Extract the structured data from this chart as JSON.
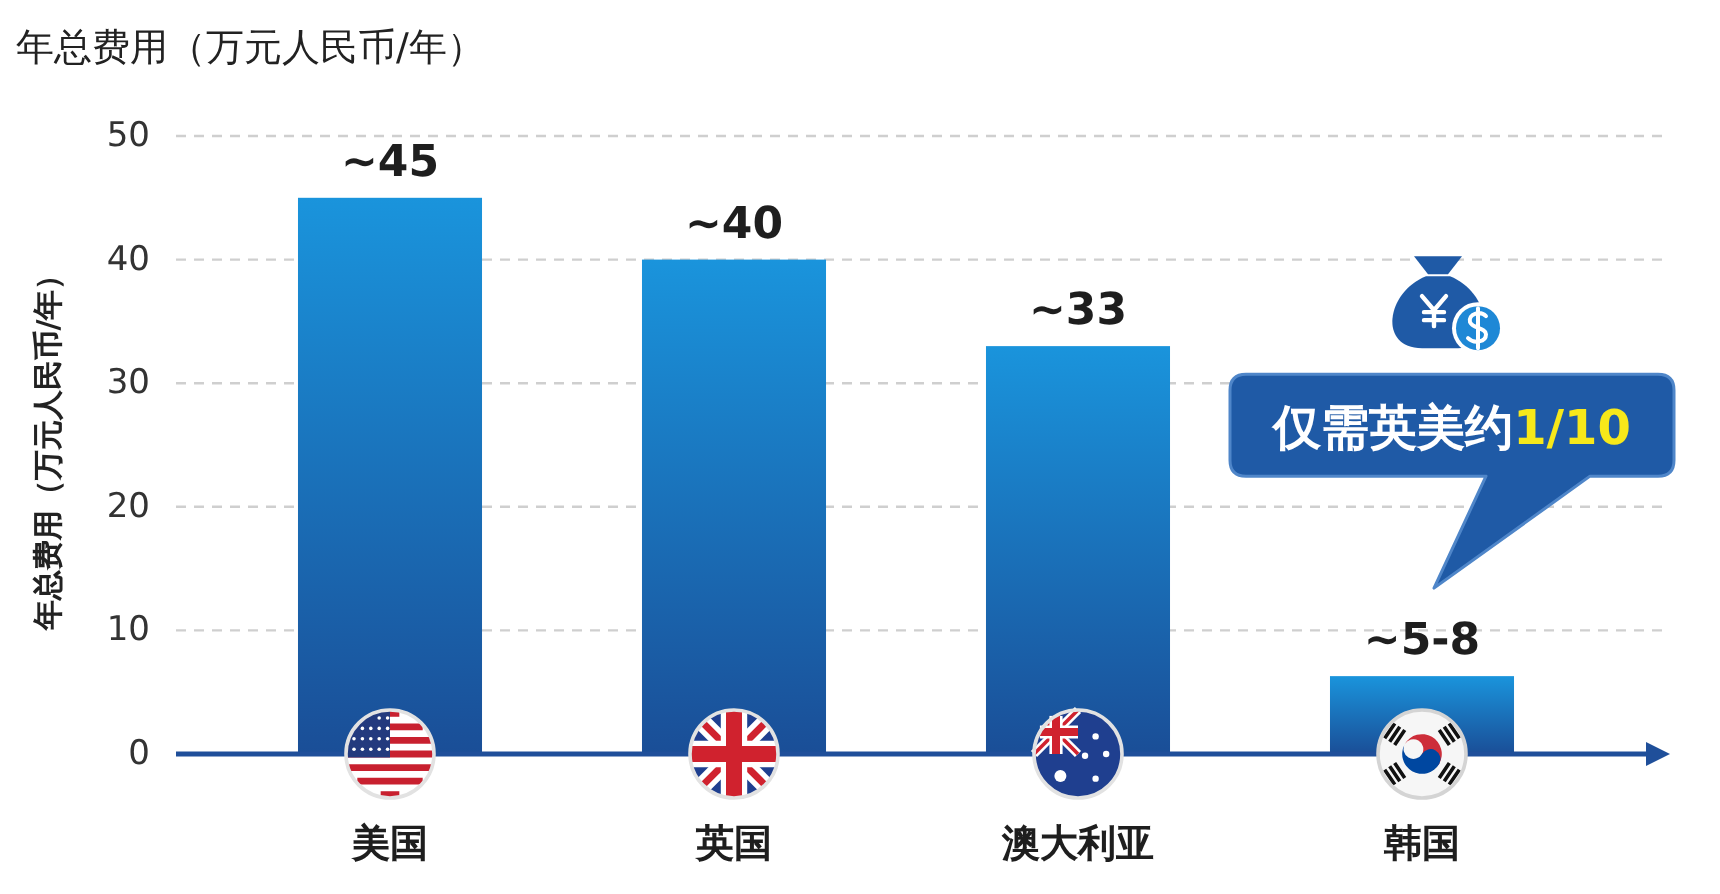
{
  "chart_data": {
    "type": "bar",
    "title": "年总费用（万元人民币/年）",
    "ylabel": "年总费用（万元人民币/年）",
    "categories": [
      "美国",
      "英国",
      "澳大利亚",
      "韩国"
    ],
    "values": [
      45,
      40,
      33,
      6.3
    ],
    "value_labels": [
      "~45",
      "~40",
      "~33",
      "~5-8"
    ],
    "color": "#1a94dc",
    "ylim": [
      0,
      50
    ],
    "yticks": [
      0,
      10,
      20,
      30,
      40,
      50
    ],
    "grid": "y",
    "annotations": [
      "仅需英美约1/10"
    ]
  }
}
